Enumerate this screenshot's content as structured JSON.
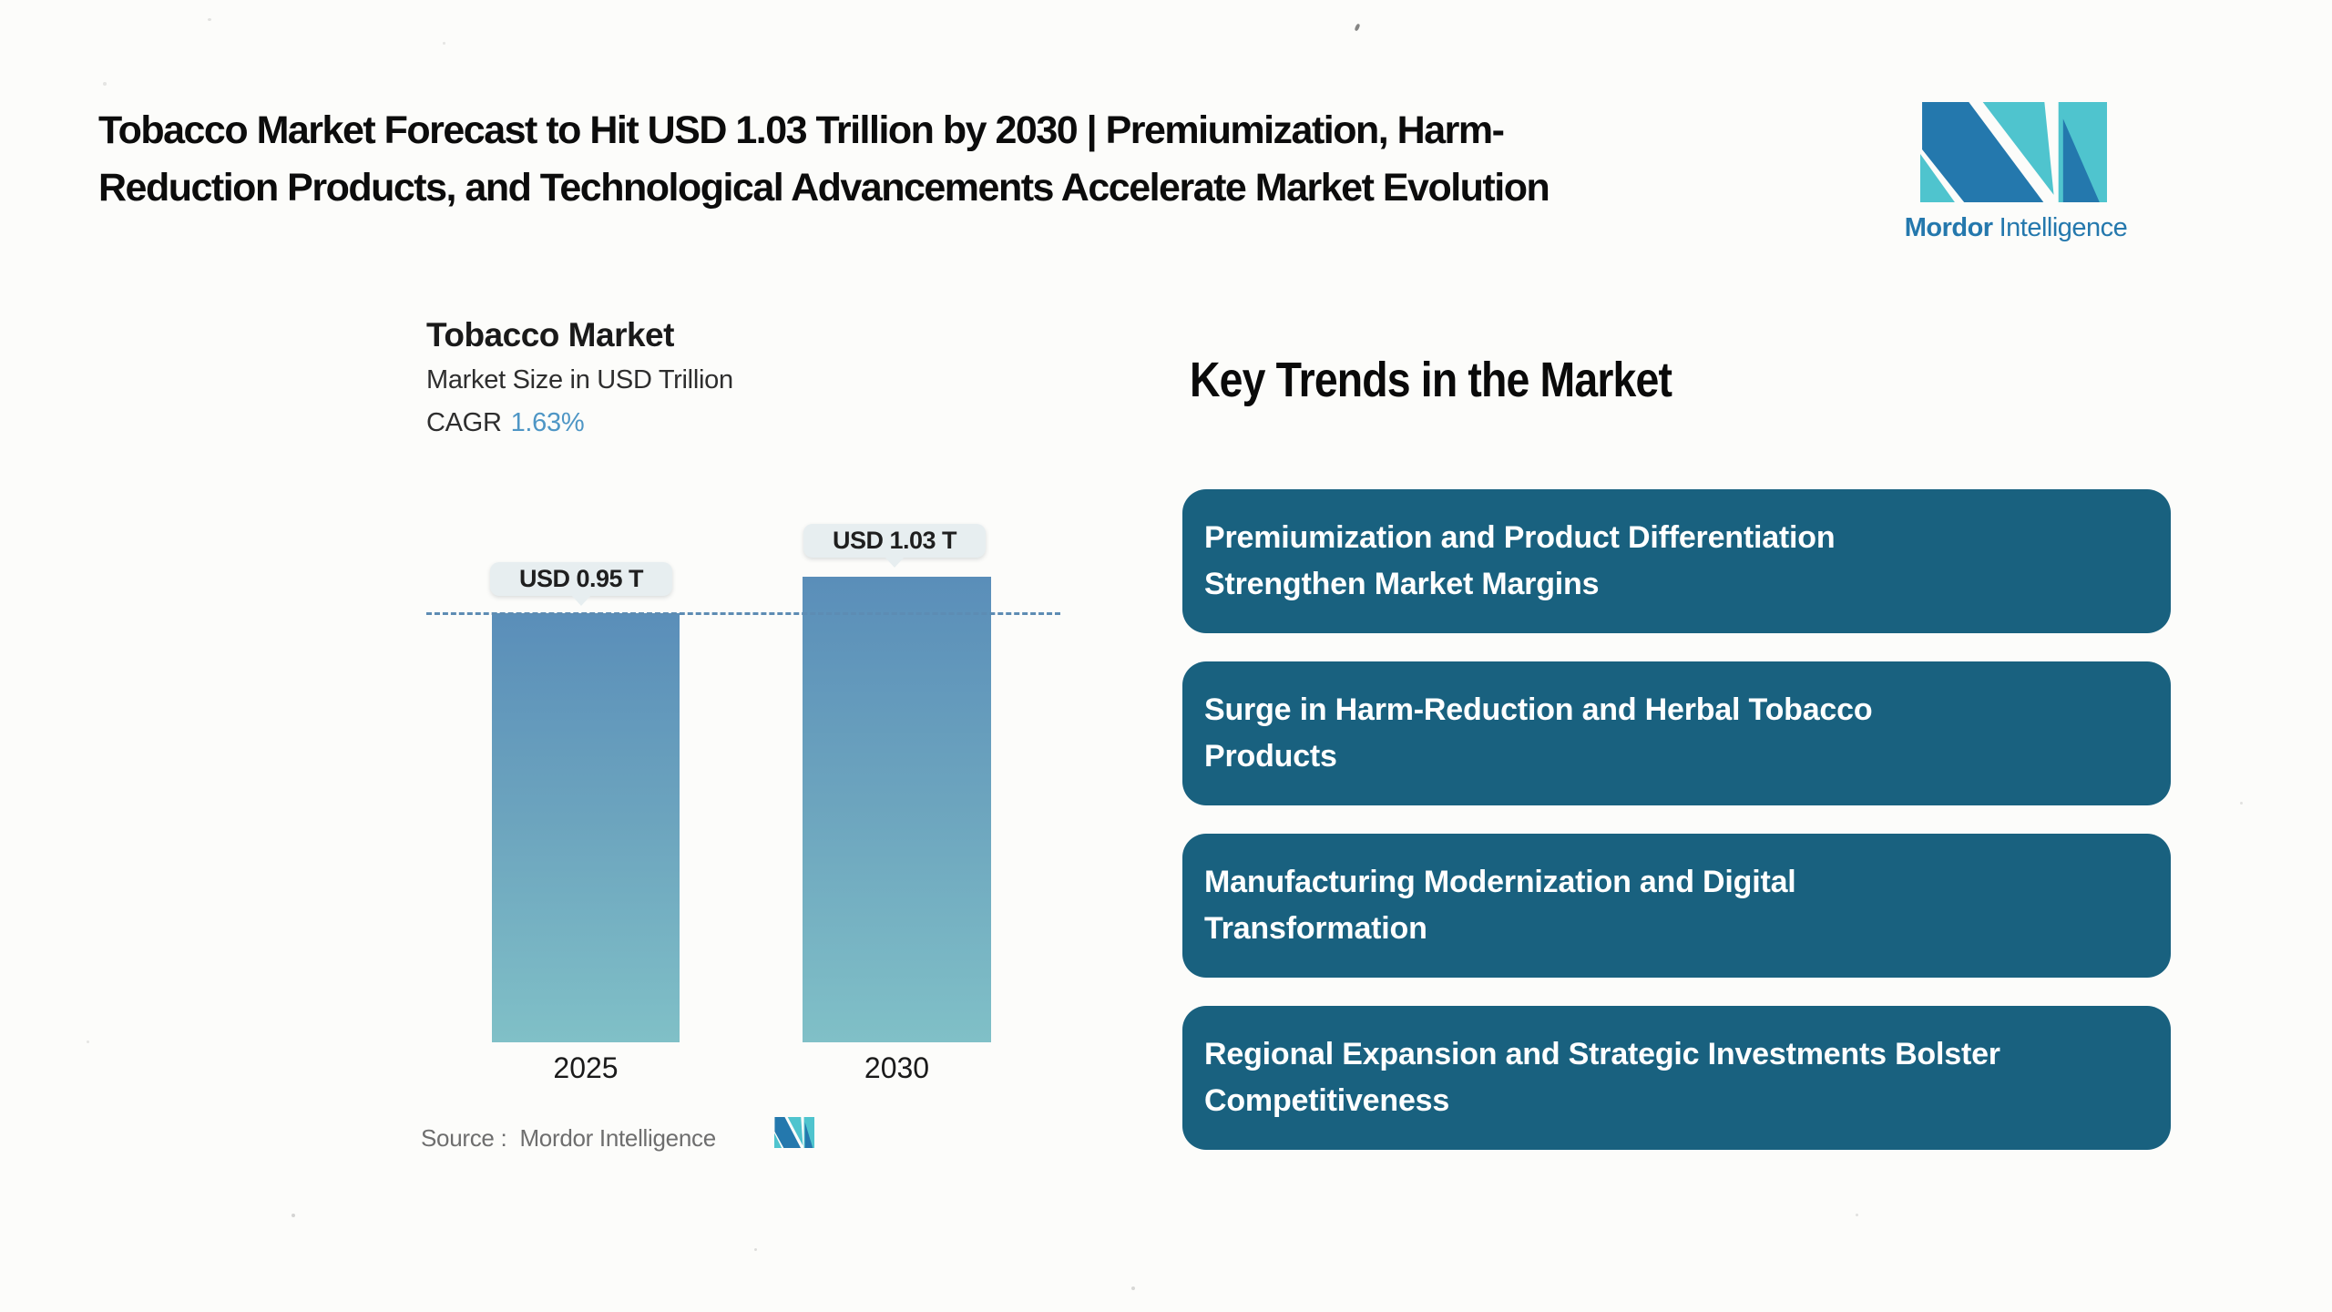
{
  "page": {
    "background": "#FCFCFA"
  },
  "header": {
    "title_line1": "Tobacco Market Forecast to Hit USD 1.03 Trillion by 2030 | Premiumization, Harm-",
    "title_line2": "Reduction Products, and Technological Advancements Accelerate Market Evolution"
  },
  "brand": {
    "logo_icon": "mordor-intelligence-mi-monogram",
    "name_bold": "Mordor",
    "name_light": "Intelligence",
    "blue": "#2478AD",
    "teal": "#4FC4CE"
  },
  "chart": {
    "title": "Tobacco Market",
    "subtitle": "Market Size in USD Trillion",
    "cagr_label": "CAGR",
    "cagr_value": "1.63%",
    "bars": [
      {
        "year": "2025",
        "value_label": "USD 0.95 T"
      },
      {
        "year": "2030",
        "value_label": "USD 1.03 T"
      }
    ],
    "source_label": "Source :",
    "source_value": "Mordor Intelligence"
  },
  "chart_data": {
    "type": "bar",
    "title": "Tobacco Market",
    "ylabel": "Market Size in USD Trillion",
    "categories": [
      "2025",
      "2030"
    ],
    "values": [
      0.95,
      1.03
    ],
    "data_labels": [
      "USD 0.95 T",
      "USD 1.03 T"
    ],
    "cagr_percent": 1.63,
    "reference_line": 0.95,
    "ylim": [
      0,
      1.1
    ],
    "grid": false,
    "legend": false,
    "bar_gradient_top": "#5A8EB9",
    "bar_gradient_bottom": "#80C0C7",
    "reference_line_color": "#5D8CB3"
  },
  "key_trends": {
    "heading": "Key Trends in the Market",
    "card_color": "#19617F",
    "cards": [
      {
        "line1": "Premiumization and Product Differentiation",
        "line2": "Strengthen Market Margins"
      },
      {
        "line1": "Surge in Harm-Reduction and Herbal Tobacco",
        "line2": "Products"
      },
      {
        "line1": "Manufacturing Modernization and Digital",
        "line2": "Transformation"
      },
      {
        "line1": "Regional Expansion and Strategic Investments Bolster",
        "line2": "Competitiveness"
      }
    ]
  }
}
